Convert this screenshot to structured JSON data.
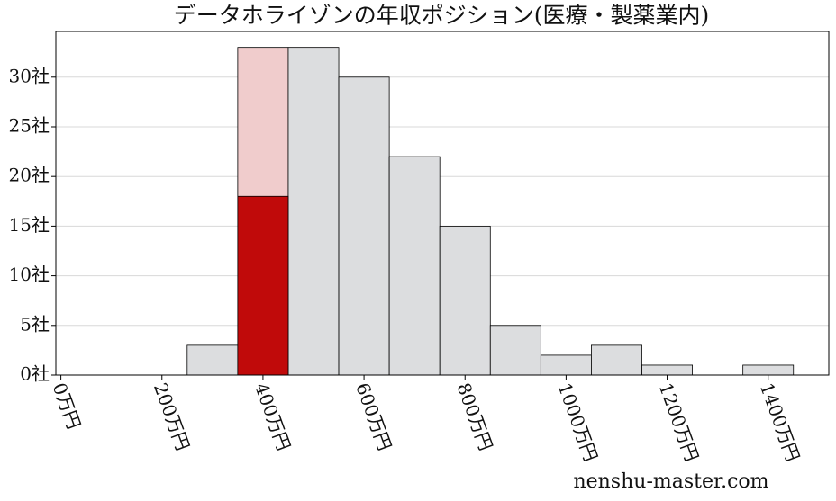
{
  "chart_data": {
    "type": "histogram",
    "title": "データホライゾンの年収ポジション(医療・製薬業内)",
    "bins": [
      250,
      350,
      450,
      550,
      650,
      750,
      850,
      950,
      1050,
      1150,
      1250,
      1350,
      1450
    ],
    "counts": [
      3,
      33,
      33,
      30,
      22,
      15,
      5,
      2,
      3,
      1,
      0,
      1
    ],
    "colors": [
      "#dcdddf",
      "#f0cccc",
      "#dcdddf",
      "#dcdddf",
      "#dcdddf",
      "#dcdddf",
      "#dcdddf",
      "#dcdddf",
      "#dcdddf",
      "#dcdddf",
      "#dcdddf",
      "#dcdddf"
    ],
    "highlight": {
      "bins": [
        350,
        450
      ],
      "counts": [
        18
      ],
      "color": "#c00a0a"
    },
    "xlim": [
      -10,
      1520
    ],
    "ylim": [
      0,
      34.6
    ],
    "xticks": [
      {
        "value": 0,
        "label": "0万円"
      },
      {
        "value": 200,
        "label": "200万円"
      },
      {
        "value": 400,
        "label": "400万円"
      },
      {
        "value": 600,
        "label": "600万円"
      },
      {
        "value": 800,
        "label": "800万円"
      },
      {
        "value": 1000,
        "label": "1000万円"
      },
      {
        "value": 1200,
        "label": "1200万円"
      },
      {
        "value": 1400,
        "label": "1400万円"
      }
    ],
    "yticks": [
      {
        "value": 0,
        "label": "0社"
      },
      {
        "value": 5,
        "label": "5社"
      },
      {
        "value": 10,
        "label": "10社"
      },
      {
        "value": 15,
        "label": "15社"
      },
      {
        "value": 20,
        "label": "20社"
      },
      {
        "value": 25,
        "label": "25社"
      },
      {
        "value": 30,
        "label": "30社"
      }
    ],
    "grid": true,
    "watermark": "nenshu-master.com"
  }
}
